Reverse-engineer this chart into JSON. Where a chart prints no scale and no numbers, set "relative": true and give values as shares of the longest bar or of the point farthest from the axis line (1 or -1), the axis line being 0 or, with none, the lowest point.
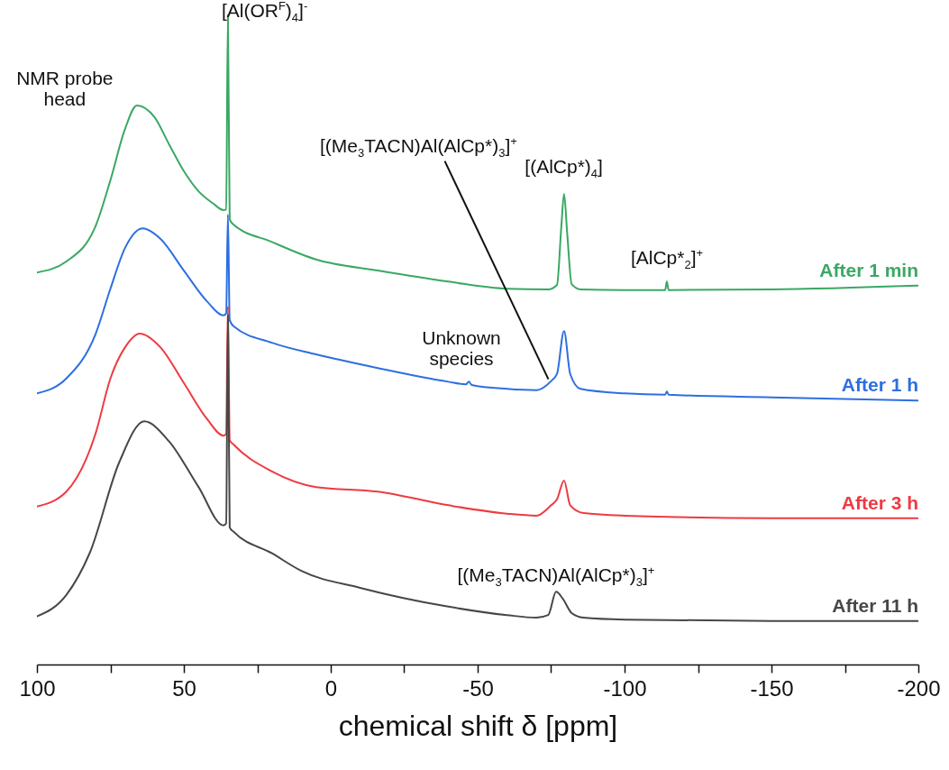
{
  "chart_data": {
    "type": "line",
    "relative": true,
    "xlabel": "chemical shift δ [ppm]",
    "xlim": [
      100,
      -200
    ],
    "xticks": [
      100,
      {
        "value": 75,
        "label": null
      },
      50,
      {
        "value": 25,
        "label": null
      },
      0,
      {
        "value": -25,
        "label": null
      },
      -50,
      {
        "value": -75,
        "label": null
      },
      -100,
      {
        "value": -125,
        "label": null
      },
      -150,
      {
        "value": -175,
        "label": null
      },
      -200
    ],
    "series": [
      {
        "name": "After 1 min",
        "color": "#3aa864",
        "x": [
          100,
          90,
          80,
          75,
          70,
          66,
          60,
          55,
          50,
          45,
          40,
          36.5,
          35.6,
          35,
          34.4,
          33.4,
          20,
          5,
          -16,
          -40,
          -60,
          -74,
          -77,
          -78.5,
          -79.4,
          -80.5,
          -82,
          -85,
          -100,
          -113.8,
          -114.4,
          -115,
          -150,
          -200
        ],
        "values": [
          0.603,
          0.62,
          0.675,
          0.745,
          0.824,
          0.86,
          0.842,
          0.8,
          0.759,
          0.728,
          0.709,
          0.699,
          0.7,
          1,
          0.685,
          0.678,
          0.65,
          0.623,
          0.606,
          0.589,
          0.578,
          0.577,
          0.584,
          0.675,
          0.724,
          0.662,
          0.585,
          0.577,
          0.576,
          0.576,
          0.589,
          0.576,
          0.577,
          0.583
        ]
      },
      {
        "name": "After 1 h",
        "color": "#2d6fe0",
        "x": [
          100,
          90,
          80,
          75,
          70,
          64,
          58,
          50,
          42,
          36.5,
          35.6,
          35,
          34.4,
          33,
          20,
          5,
          -16,
          -40,
          -46,
          -47,
          -48,
          -60,
          -70,
          -75,
          -77,
          -79.4,
          -81.5,
          -85,
          -100,
          -113.8,
          -114.4,
          -115,
          -150,
          -200
        ],
        "values": [
          0.417,
          0.44,
          0.509,
          0.578,
          0.641,
          0.671,
          0.655,
          0.606,
          0.558,
          0.537,
          0.54,
          0.692,
          0.53,
          0.52,
          0.495,
          0.477,
          0.456,
          0.435,
          0.431,
          0.435,
          0.43,
          0.424,
          0.422,
          0.436,
          0.447,
          0.513,
          0.447,
          0.424,
          0.417,
          0.415,
          0.42,
          0.415,
          0.411,
          0.406
        ]
      },
      {
        "name": "After 3 h",
        "color": "#ee3b41",
        "x": [
          100,
          90,
          80,
          75,
          70,
          65,
          58,
          50,
          42,
          36.5,
          35.6,
          35,
          34.4,
          33,
          20,
          5,
          -16,
          -40,
          -60,
          -70,
          -75,
          -77,
          -79.4,
          -81.5,
          -86,
          -100,
          -150,
          -200
        ],
        "values": [
          0.243,
          0.266,
          0.356,
          0.44,
          0.488,
          0.509,
          0.488,
          0.433,
          0.377,
          0.352,
          0.355,
          0.551,
          0.345,
          0.338,
          0.297,
          0.273,
          0.266,
          0.245,
          0.232,
          0.229,
          0.245,
          0.254,
          0.283,
          0.245,
          0.233,
          0.229,
          0.225,
          0.225
        ]
      },
      {
        "name": "After 11 h",
        "color": "#474747",
        "x": [
          100,
          90,
          82,
          72,
          63.5,
          55,
          45,
          36.5,
          35.6,
          35,
          34.4,
          33,
          20,
          10,
          -10,
          -40,
          -60,
          -70,
          -74,
          -76.7,
          -79,
          -82,
          -86,
          -100,
          -150,
          -200
        ],
        "values": [
          0.074,
          0.107,
          0.172,
          0.311,
          0.374,
          0.343,
          0.273,
          0.214,
          0.217,
          0.537,
          0.211,
          0.204,
          0.171,
          0.144,
          0.118,
          0.089,
          0.076,
          0.072,
          0.076,
          0.112,
          0.101,
          0.079,
          0.072,
          0.069,
          0.067,
          0.067
        ]
      }
    ],
    "annotations": [
      {
        "text": "NMR probe head",
        "x": 66,
        "y": 0.86
      },
      {
        "text": "[Al(OR$^{F}$)$_{4}$]$^{-}$",
        "x": 35,
        "y": 1
      },
      {
        "text": "[(Me$_{3}$TACN)Al(AlCp*)$_{3}$]$^{+}$",
        "x": -75,
        "y": 0.436
      },
      "Unknown species",
      {
        "text": "[(AlCp*)$_{4}$]",
        "x": -79.4,
        "y": 0.724
      },
      {
        "text": "[AlCp*$_{2}$]$^{+}$",
        "x": -114.4,
        "y": 0.589
      },
      {
        "text": "[(Me$_{3}$TACN)Al(AlCp*)$_{3}$]$^{+}$",
        "x": -76.7,
        "y": 0.112
      }
    ]
  }
}
